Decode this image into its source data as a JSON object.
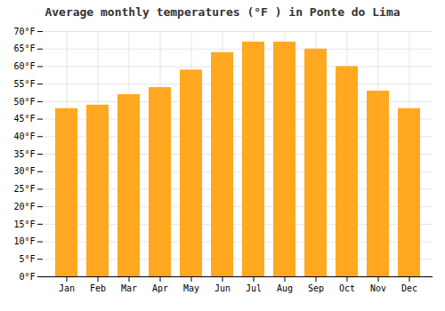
{
  "chart_data": {
    "type": "bar",
    "title": "Average monthly temperatures (°F ) in Ponte do Lima",
    "categories": [
      "Jan",
      "Feb",
      "Mar",
      "Apr",
      "May",
      "Jun",
      "Jul",
      "Aug",
      "Sep",
      "Oct",
      "Nov",
      "Dec"
    ],
    "values": [
      48,
      49,
      52,
      54,
      59,
      64,
      67,
      67,
      65,
      60,
      53,
      48
    ],
    "color": "#FFA820",
    "ylim": [
      0,
      70
    ],
    "yticks": [
      {
        "value": 0,
        "label": "0°F"
      },
      {
        "value": 5,
        "label": "5°F"
      },
      {
        "value": 10,
        "label": "10°F"
      },
      {
        "value": 15,
        "label": "15°F"
      },
      {
        "value": 20,
        "label": "20°F"
      },
      {
        "value": 25,
        "label": "25°F"
      },
      {
        "value": 30,
        "label": "30°F"
      },
      {
        "value": 35,
        "label": "35°F"
      },
      {
        "value": 40,
        "label": "40°F"
      },
      {
        "value": 45,
        "label": "45°F"
      },
      {
        "value": 50,
        "label": "50°F"
      },
      {
        "value": 55,
        "label": "55°F"
      },
      {
        "value": 60,
        "label": "60°F"
      },
      {
        "value": 65,
        "label": "65°F"
      },
      {
        "value": 70,
        "label": "70°F"
      }
    ],
    "grid": true
  }
}
